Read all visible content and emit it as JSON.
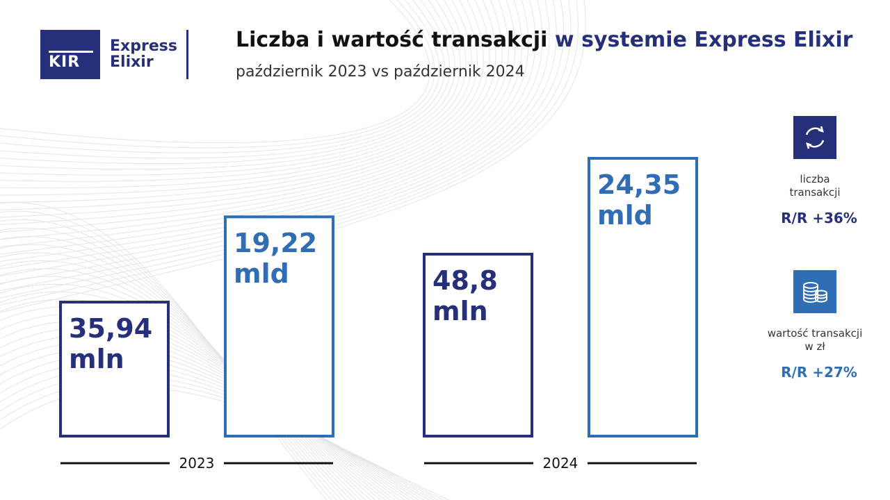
{
  "header": {
    "logo_kir": "KIR",
    "logo_line1": "Express",
    "logo_line2": "Elixir",
    "title_part1": "Liczba i wartość transakcji",
    "title_part2": "w systemie Express Elixir",
    "subtitle": "październik 2023 vs październik 2024"
  },
  "colors": {
    "navy": "#252f7a",
    "blue": "#2f6db5",
    "year_line": "#111111"
  },
  "chart_data": {
    "type": "bar",
    "categories": [
      "2023",
      "2024"
    ],
    "series": [
      {
        "metric": "count",
        "values": [
          35.94,
          48.8
        ],
        "labels": [
          [
            "35,94",
            "mln"
          ],
          [
            "48,8",
            "mln"
          ]
        ]
      },
      {
        "metric": "value",
        "values": [
          19.22,
          24.35
        ],
        "labels": [
          [
            "19,22",
            "mld"
          ],
          [
            "24,35",
            "mld"
          ]
        ]
      }
    ]
  },
  "side": {
    "count": {
      "icon": "exchange-arrows-icon",
      "label_line1": "liczba",
      "label_line2": "transakcji",
      "change": "R/R +36%"
    },
    "value": {
      "icon": "coins-stack-icon",
      "label_line1": "wartość transakcji",
      "label_line2": "w zł",
      "change": "R/R +27%"
    }
  }
}
